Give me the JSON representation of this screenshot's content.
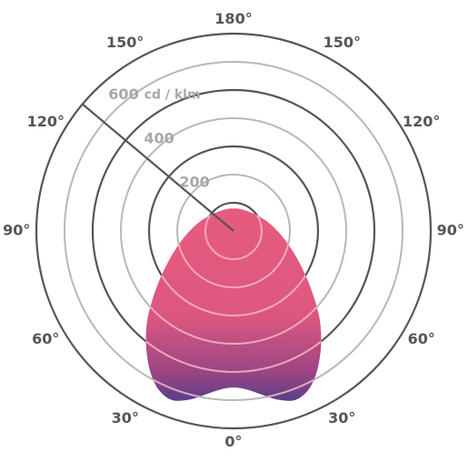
{
  "chart_data": {
    "type": "polar",
    "radial_unit": "cd / klm",
    "radial_max": 700,
    "rings": [
      {
        "value": 100,
        "label": ""
      },
      {
        "value": 200,
        "label": "200"
      },
      {
        "value": 300,
        "label": ""
      },
      {
        "value": 400,
        "label": "400"
      },
      {
        "value": 500,
        "label": ""
      },
      {
        "value": 600,
        "label": "600"
      },
      {
        "value": 700,
        "label": ""
      }
    ],
    "angle_labels": [
      "0°",
      "30°",
      "30°",
      "60°",
      "60°",
      "90°",
      "90°",
      "120°",
      "120°",
      "150°",
      "150°",
      "180°"
    ],
    "angles": [
      0,
      30,
      -30,
      60,
      -60,
      90,
      -90,
      120,
      -120,
      150,
      -150,
      180
    ],
    "series": [
      {
        "angles": [
          0,
          5,
          10,
          15,
          20,
          25,
          30,
          35,
          40,
          45,
          50,
          55,
          60,
          65,
          70,
          75,
          80,
          85,
          90,
          95,
          100,
          105,
          110,
          115,
          120,
          125,
          130,
          135,
          140,
          145,
          150,
          155,
          160,
          165,
          170,
          175,
          180
        ],
        "values": [
          555,
          565,
          590,
          620,
          638,
          624,
          586,
          536,
          484,
          430,
          375,
          328,
          288,
          255,
          228,
          205,
          186,
          170,
          156,
          144,
          134,
          125,
          117,
          110,
          104,
          99,
          95,
          91,
          88,
          86,
          84,
          83,
          82,
          81,
          81,
          80,
          80
        ],
        "gradient_colors": [
          "#e55b7e",
          "#dc5780",
          "#9a4583",
          "#2d3a8c"
        ]
      }
    ]
  }
}
